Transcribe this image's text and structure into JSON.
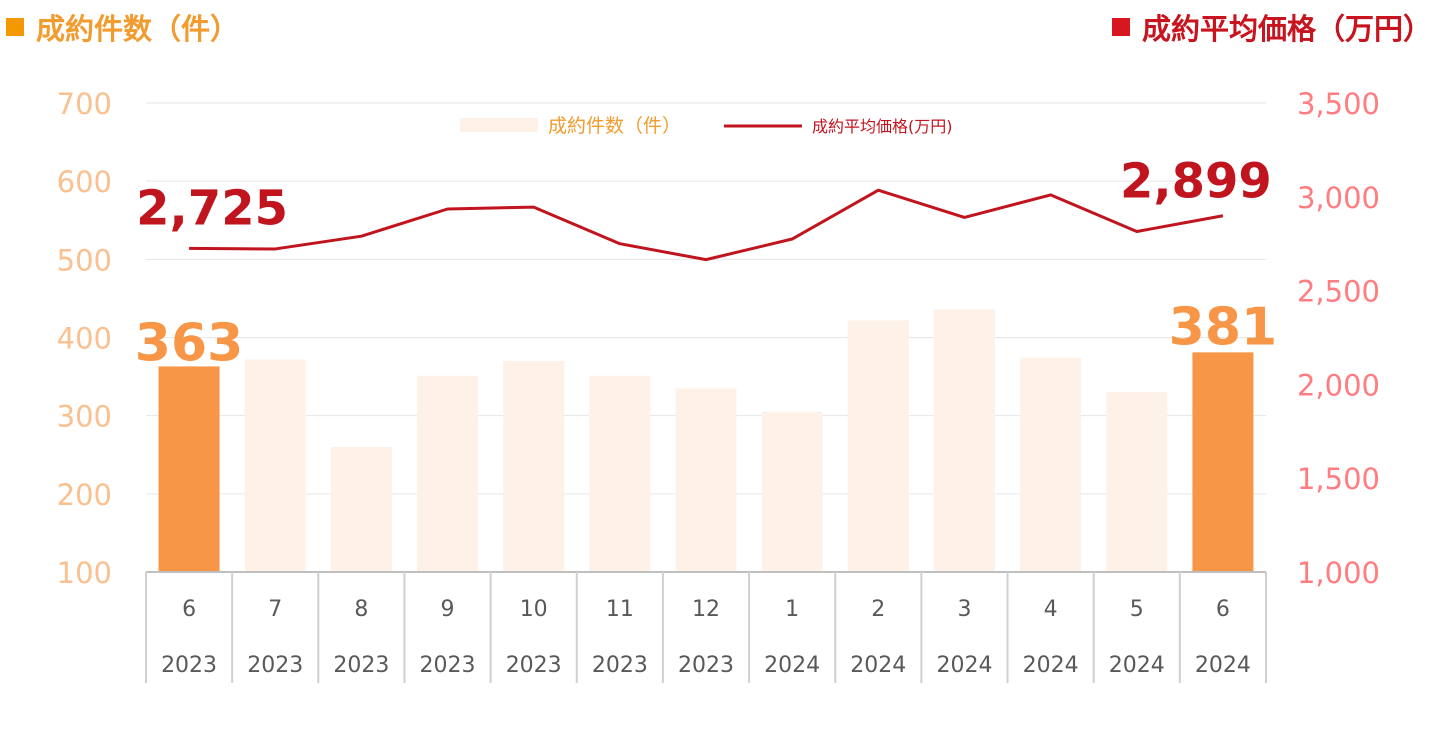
{
  "headers": {
    "left_title": "成約件数（件）",
    "right_title": "成約平均価格（万円）"
  },
  "chart_data": {
    "type": "bar",
    "title": "",
    "categories": [
      {
        "month": "6",
        "year": "2023"
      },
      {
        "month": "7",
        "year": "2023"
      },
      {
        "month": "8",
        "year": "2023"
      },
      {
        "month": "9",
        "year": "2023"
      },
      {
        "month": "10",
        "year": "2023"
      },
      {
        "month": "11",
        "year": "2023"
      },
      {
        "month": "12",
        "year": "2023"
      },
      {
        "month": "1",
        "year": "2024"
      },
      {
        "month": "2",
        "year": "2024"
      },
      {
        "month": "3",
        "year": "2024"
      },
      {
        "month": "4",
        "year": "2024"
      },
      {
        "month": "5",
        "year": "2024"
      },
      {
        "month": "6",
        "year": "2024"
      }
    ],
    "series": [
      {
        "name": "成約件数（件）",
        "type": "bar",
        "axis": "left",
        "values": [
          363,
          372,
          260,
          351,
          370,
          351,
          335,
          305,
          422,
          436,
          374,
          330,
          381
        ],
        "highlight_indices": [
          0,
          12
        ],
        "color": "#F79646",
        "faded_color": "#FDF1E8"
      },
      {
        "name": "成約平均価格(万円)",
        "type": "line",
        "axis": "right",
        "values": [
          2725,
          2722,
          2790,
          2935,
          2945,
          2750,
          2665,
          2775,
          3035,
          2890,
          3010,
          2815,
          2899
        ],
        "color": "#C0141E"
      }
    ],
    "y_left": {
      "min": 100,
      "max": 700,
      "ticks": [
        "100",
        "200",
        "300",
        "400",
        "500",
        "600",
        "700"
      ],
      "color": "#FAC090"
    },
    "y_right": {
      "min": 1000,
      "max": 3500,
      "ticks": [
        "1,000",
        "1,500",
        "2,000",
        "2,500",
        "3,000",
        "3,500"
      ],
      "color": "#FF7C80"
    },
    "annotations": {
      "bar_first": "363",
      "bar_last": "381",
      "line_first": "2,725",
      "line_last": "2,899"
    },
    "grid": true,
    "legend": {
      "position": "top-center",
      "entries": [
        "成約件数（件）",
        "成約平均価格(万円)"
      ]
    }
  }
}
